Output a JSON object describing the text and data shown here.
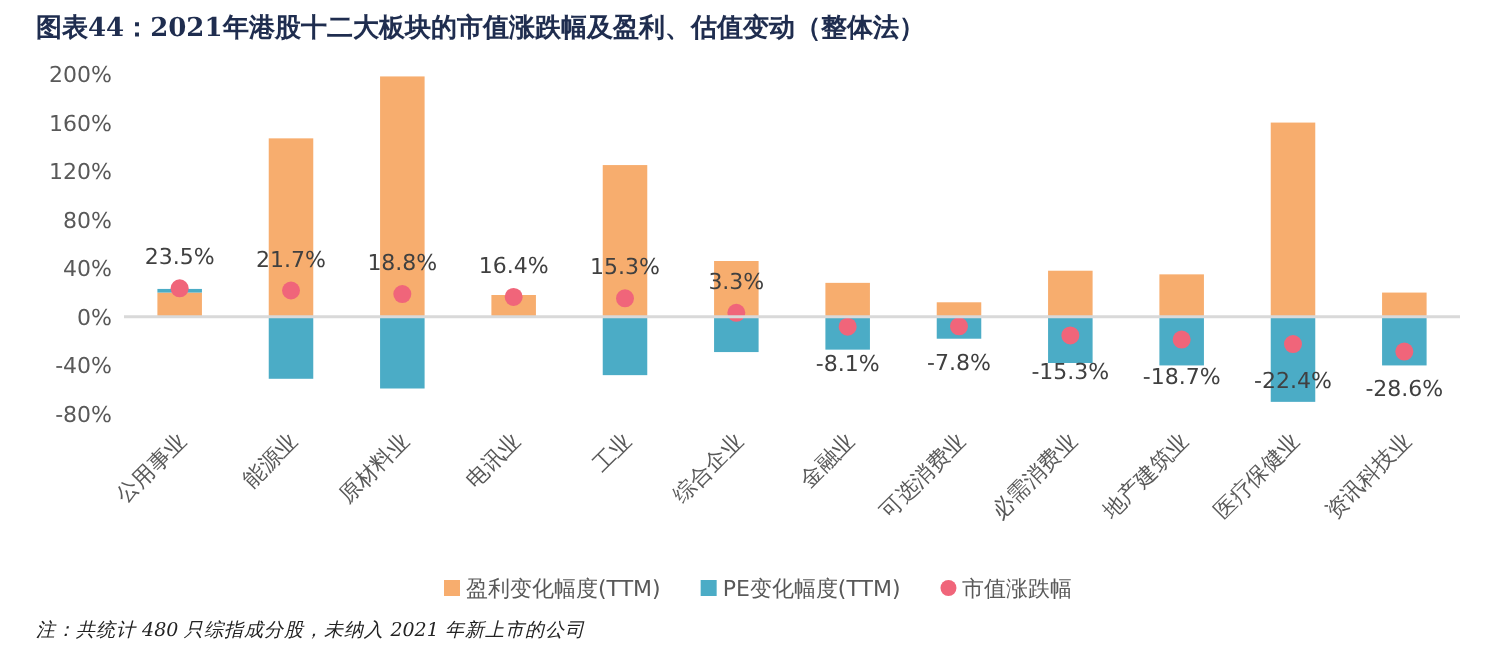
{
  "chart_data": {
    "type": "bar",
    "title": "图表44：2021年港股十二大板块的市值涨跌幅及盈利、估值变动（整体法）",
    "categories": [
      "公用事业",
      "能源业",
      "原材料业",
      "电讯业",
      "工业",
      "综合企业",
      "金融业",
      "可选消费业",
      "必需消费业",
      "地产建筑业",
      "医疗保健业",
      "资讯科技业"
    ],
    "stacked": true,
    "series": [
      {
        "name": "盈利变化幅度(TTM)",
        "color": "#f7ad6e",
        "values": [
          20,
          147,
          198,
          18,
          125,
          46,
          28,
          12,
          38,
          35,
          160,
          20
        ]
      },
      {
        "name": "PE变化幅度(TTM)",
        "color": "#4bacc6",
        "values": [
          3,
          -51,
          -59,
          null,
          -48,
          -29,
          -27,
          -18,
          -38,
          -40,
          -70,
          -40
        ]
      },
      {
        "name": "市值涨跌幅",
        "type": "scatter",
        "color": "#f0657a",
        "values": [
          23.5,
          21.7,
          18.8,
          16.4,
          15.3,
          3.3,
          -8.1,
          -7.8,
          -15.3,
          -18.7,
          -22.4,
          -28.6
        ],
        "value_labels": [
          "23.5%",
          "21.7%",
          "18.8%",
          "16.4%",
          "15.3%",
          "3.3%",
          "-8.1%",
          "-7.8%",
          "-15.3%",
          "-18.7%",
          "-22.4%",
          "-28.6%"
        ]
      }
    ],
    "marker": "circle",
    "ylim": [
      -80,
      200
    ],
    "yticks": [
      {
        "value": -80,
        "label": "-80%"
      },
      {
        "value": -40,
        "label": "-40%"
      },
      {
        "value": 0,
        "label": "0%"
      },
      {
        "value": 40,
        "label": "40%"
      },
      {
        "value": 80,
        "label": "80%"
      },
      {
        "value": 120,
        "label": "120%"
      },
      {
        "value": 160,
        "label": "160%"
      },
      {
        "value": 200,
        "label": "200%"
      }
    ],
    "legend": "bottom",
    "annotations": [
      "注：共统计 480 只综指成分股，未纳入 2021 年新上市的公司"
    ]
  }
}
